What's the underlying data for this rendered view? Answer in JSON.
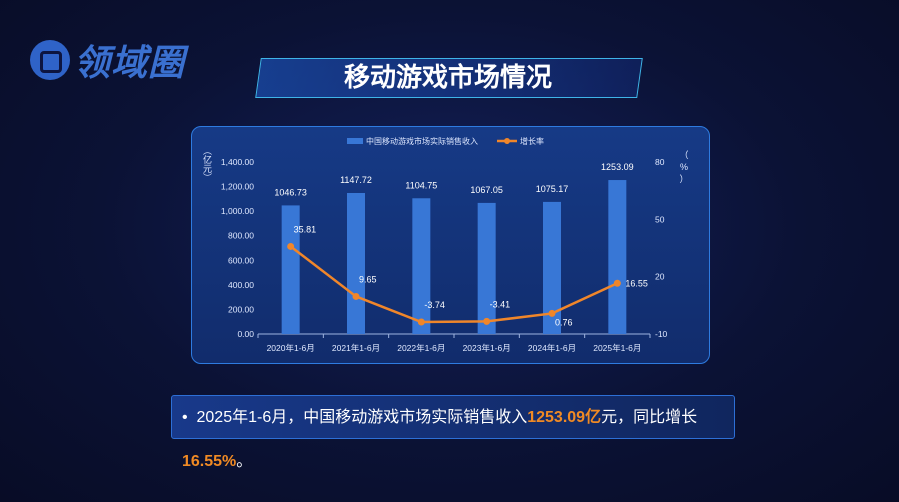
{
  "logo": {
    "text": "领域圈"
  },
  "title": "移动游戏市场情况",
  "chart_data": {
    "type": "bar",
    "categories": [
      "2020年1-6月",
      "2021年1-6月",
      "2022年1-6月",
      "2023年1-6月",
      "2024年1-6月",
      "2025年1-6月"
    ],
    "series": [
      {
        "name": "中国移动游戏市场实际销售收入",
        "type": "bar",
        "axis": "left",
        "values": [
          1046.73,
          1147.72,
          1104.75,
          1067.05,
          1075.17,
          1253.09
        ],
        "labels": [
          "1046.73",
          "1147.72",
          "1104.75",
          "1067.05",
          "1075.17",
          "1253.09"
        ]
      },
      {
        "name": "增长率",
        "type": "line",
        "axis": "right",
        "values": [
          35.81,
          9.65,
          -3.74,
          -3.41,
          0.76,
          16.55
        ],
        "labels": [
          "35.81",
          "9.65",
          "-3.74",
          "-3.41",
          "0.76",
          "16.55"
        ]
      }
    ],
    "y_left": {
      "label": "（亿元）",
      "ylim": [
        0,
        1400
      ],
      "ticks": [
        "0.00",
        "200.00",
        "400.00",
        "600.00",
        "800.00",
        "1,000.00",
        "1,200.00",
        "1,400.00"
      ]
    },
    "y_right": {
      "label": "（%）",
      "ylim": [
        -10,
        80
      ],
      "ticks": [
        "-10",
        "20",
        "50",
        "80"
      ]
    },
    "legend": "top-center",
    "grid": false,
    "colors": {
      "bar": "#3877d6",
      "line": "#f0862a"
    }
  },
  "note": {
    "bullet": "•",
    "pre": "2025年1-6月，中国移动游戏市场实际销售收入",
    "v1": "1253.09亿",
    "mid": "元，同比增长",
    "v2": "16.55%",
    "end": "。"
  }
}
